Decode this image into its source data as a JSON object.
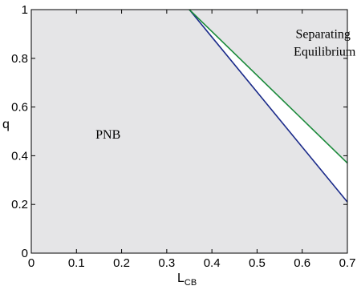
{
  "chart_data": {
    "type": "area",
    "xlabel": "L",
    "xlabel_sub": "CB",
    "ylabel": "q",
    "xlim": [
      0,
      0.7
    ],
    "ylim": [
      0,
      1
    ],
    "x_ticks": [
      "0",
      "0.1",
      "0.2",
      "0.3",
      "0.4",
      "0.5",
      "0.6",
      "0.7"
    ],
    "y_ticks": [
      "0",
      "0.2",
      "0.4",
      "0.6",
      "0.8",
      "1"
    ],
    "series": [
      {
        "color": "#1a2a8a",
        "x": [
          0.35,
          0.7
        ],
        "y": [
          1.0,
          0.21
        ]
      },
      {
        "color": "#1a8a3a",
        "x": [
          0.35,
          0.7
        ],
        "y": [
          1.0,
          0.37
        ]
      }
    ],
    "regions": [
      {
        "label": "PNB",
        "x": 0.17,
        "y": 0.47
      },
      {
        "label_lines": [
          "Separating",
          "Equilibrium"
        ],
        "x": 0.6,
        "y": 0.86
      }
    ],
    "colors": {
      "shaded": "#e5e5e7",
      "gap": "#ffffff"
    }
  }
}
